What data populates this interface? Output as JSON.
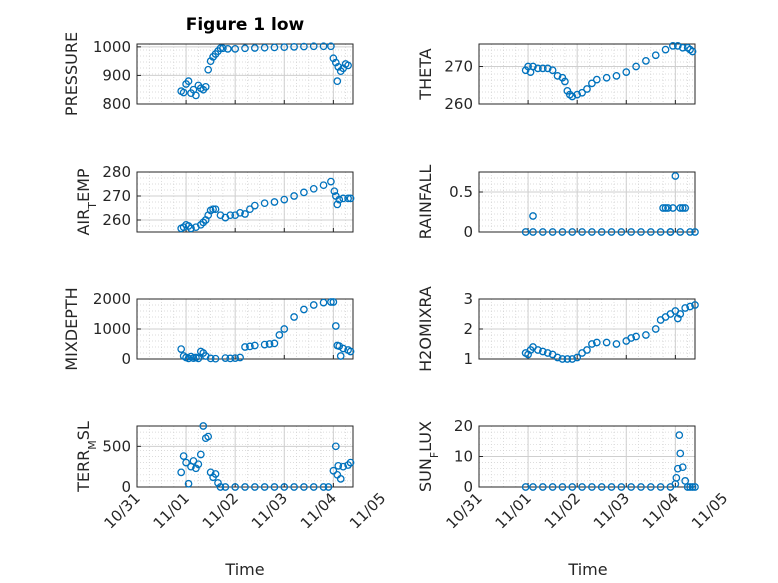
{
  "figure": {
    "title": "Figure 1 low",
    "xlabel": "Time",
    "marker_color": "#0072BD"
  },
  "chart_data": [
    {
      "type": "scatter",
      "ylabel": "PRESSURE",
      "ylim": [
        800,
        1010
      ],
      "yticks": [
        {
          "v": 800,
          "label": "800"
        },
        {
          "v": 900,
          "label": "900"
        },
        {
          "v": 1000,
          "label": "1000"
        }
      ],
      "points": [
        [
          0.9,
          845
        ],
        [
          0.95,
          840
        ],
        [
          1.0,
          870
        ],
        [
          1.05,
          880
        ],
        [
          1.1,
          838
        ],
        [
          1.15,
          850
        ],
        [
          1.2,
          830
        ],
        [
          1.25,
          865
        ],
        [
          1.3,
          855
        ],
        [
          1.35,
          850
        ],
        [
          1.4,
          860
        ],
        [
          1.45,
          920
        ],
        [
          1.5,
          950
        ],
        [
          1.55,
          965
        ],
        [
          1.6,
          975
        ],
        [
          1.65,
          985
        ],
        [
          1.7,
          995
        ],
        [
          1.75,
          995
        ],
        [
          1.85,
          993
        ],
        [
          2.0,
          993
        ],
        [
          2.2,
          995
        ],
        [
          2.4,
          996
        ],
        [
          2.6,
          997
        ],
        [
          2.8,
          998
        ],
        [
          3.0,
          999
        ],
        [
          3.2,
          1000
        ],
        [
          3.4,
          1001
        ],
        [
          3.6,
          1002
        ],
        [
          3.8,
          1002
        ],
        [
          3.95,
          1002
        ],
        [
          4.0,
          960
        ],
        [
          4.05,
          945
        ],
        [
          4.08,
          880
        ],
        [
          4.1,
          930
        ],
        [
          4.15,
          915
        ],
        [
          4.2,
          925
        ],
        [
          4.25,
          940
        ],
        [
          4.3,
          935
        ]
      ]
    },
    {
      "type": "scatter",
      "ylabel": "THETA",
      "ylim": [
        260,
        276
      ],
      "yticks": [
        {
          "v": 260,
          "label": "260"
        },
        {
          "v": 270,
          "label": "270"
        }
      ],
      "points": [
        [
          0.95,
          269
        ],
        [
          1.0,
          270
        ],
        [
          1.05,
          268.5
        ],
        [
          1.1,
          270
        ],
        [
          1.2,
          269.5
        ],
        [
          1.3,
          269.5
        ],
        [
          1.4,
          269.5
        ],
        [
          1.5,
          269
        ],
        [
          1.6,
          267.5
        ],
        [
          1.7,
          267
        ],
        [
          1.75,
          266
        ],
        [
          1.8,
          263.5
        ],
        [
          1.85,
          262.5
        ],
        [
          1.9,
          262
        ],
        [
          2.0,
          262.5
        ],
        [
          2.1,
          263
        ],
        [
          2.2,
          264
        ],
        [
          2.3,
          265.5
        ],
        [
          2.4,
          266.5
        ],
        [
          2.6,
          267
        ],
        [
          2.8,
          267.5
        ],
        [
          3.0,
          268.5
        ],
        [
          3.2,
          270
        ],
        [
          3.4,
          271.5
        ],
        [
          3.6,
          273
        ],
        [
          3.8,
          274.5
        ],
        [
          3.95,
          275.5
        ],
        [
          4.05,
          275.5
        ],
        [
          4.15,
          275
        ],
        [
          4.25,
          275
        ],
        [
          4.3,
          274.5
        ],
        [
          4.35,
          274
        ]
      ]
    },
    {
      "type": "scatter",
      "ylabel": "AIR",
      "ylabel_sub": "T",
      "ylabel_rest": "EMP",
      "ylim": [
        255,
        280
      ],
      "yticks": [
        {
          "v": 260,
          "label": "260"
        },
        {
          "v": 270,
          "label": "270"
        },
        {
          "v": 280,
          "label": "280"
        }
      ],
      "points": [
        [
          0.9,
          256.5
        ],
        [
          0.95,
          257
        ],
        [
          1.0,
          258
        ],
        [
          1.05,
          257.5
        ],
        [
          1.1,
          256.5
        ],
        [
          1.2,
          257
        ],
        [
          1.3,
          258
        ],
        [
          1.35,
          259
        ],
        [
          1.4,
          260
        ],
        [
          1.45,
          262
        ],
        [
          1.5,
          264
        ],
        [
          1.55,
          264.5
        ],
        [
          1.6,
          264.5
        ],
        [
          1.7,
          262
        ],
        [
          1.8,
          261
        ],
        [
          1.9,
          262
        ],
        [
          2.0,
          262
        ],
        [
          2.1,
          263
        ],
        [
          2.2,
          262.5
        ],
        [
          2.3,
          264.5
        ],
        [
          2.4,
          266
        ],
        [
          2.6,
          267
        ],
        [
          2.8,
          267.5
        ],
        [
          3.0,
          268.5
        ],
        [
          3.2,
          270
        ],
        [
          3.4,
          271.5
        ],
        [
          3.6,
          273
        ],
        [
          3.8,
          274.5
        ],
        [
          3.95,
          276
        ],
        [
          4.02,
          272
        ],
        [
          4.05,
          270
        ],
        [
          4.08,
          266.5
        ],
        [
          4.12,
          268.5
        ],
        [
          4.2,
          269
        ],
        [
          4.3,
          269
        ],
        [
          4.35,
          269
        ]
      ]
    },
    {
      "type": "scatter",
      "ylabel": "RAINFALL",
      "ylim": [
        0,
        0.75
      ],
      "yticks": [
        {
          "v": 0,
          "label": "0"
        },
        {
          "v": 0.5,
          "label": "0.5"
        }
      ],
      "points": [
        [
          0.95,
          0
        ],
        [
          1.1,
          0
        ],
        [
          1.3,
          0
        ],
        [
          1.5,
          0
        ],
        [
          1.7,
          0
        ],
        [
          1.9,
          0
        ],
        [
          2.1,
          0
        ],
        [
          2.3,
          0
        ],
        [
          2.5,
          0
        ],
        [
          2.7,
          0
        ],
        [
          2.9,
          0
        ],
        [
          3.1,
          0
        ],
        [
          3.3,
          0
        ],
        [
          3.5,
          0
        ],
        [
          3.7,
          0
        ],
        [
          3.9,
          0
        ],
        [
          4.1,
          0
        ],
        [
          4.3,
          0
        ],
        [
          4.4,
          0
        ],
        [
          1.1,
          0.2
        ],
        [
          3.75,
          0.3
        ],
        [
          3.8,
          0.3
        ],
        [
          3.85,
          0.3
        ],
        [
          3.95,
          0.3
        ],
        [
          4.1,
          0.3
        ],
        [
          4.15,
          0.3
        ],
        [
          4.2,
          0.3
        ],
        [
          3.9,
          0
        ],
        [
          4.0,
          0.7
        ]
      ]
    },
    {
      "type": "scatter",
      "ylabel": "MIXDEPTH",
      "ylim": [
        0,
        2000
      ],
      "yticks": [
        {
          "v": 0,
          "label": "0"
        },
        {
          "v": 1000,
          "label": "1000"
        },
        {
          "v": 2000,
          "label": "2000"
        }
      ],
      "points": [
        [
          0.9,
          330
        ],
        [
          0.95,
          100
        ],
        [
          1.0,
          50
        ],
        [
          1.05,
          20
        ],
        [
          1.1,
          80
        ],
        [
          1.15,
          30
        ],
        [
          1.2,
          50
        ],
        [
          1.25,
          20
        ],
        [
          1.3,
          250
        ],
        [
          1.35,
          200
        ],
        [
          1.4,
          100
        ],
        [
          1.5,
          20
        ],
        [
          1.6,
          10
        ],
        [
          1.8,
          30
        ],
        [
          1.9,
          20
        ],
        [
          2.0,
          30
        ],
        [
          2.1,
          50
        ],
        [
          2.2,
          400
        ],
        [
          2.3,
          420
        ],
        [
          2.4,
          450
        ],
        [
          2.6,
          480
        ],
        [
          2.7,
          500
        ],
        [
          2.8,
          520
        ],
        [
          2.9,
          800
        ],
        [
          3.0,
          1000
        ],
        [
          3.2,
          1400
        ],
        [
          3.4,
          1650
        ],
        [
          3.6,
          1800
        ],
        [
          3.8,
          1880
        ],
        [
          3.95,
          1900
        ],
        [
          4.0,
          1900
        ],
        [
          4.05,
          1100
        ],
        [
          4.08,
          450
        ],
        [
          4.12,
          430
        ],
        [
          4.15,
          100
        ],
        [
          4.2,
          350
        ],
        [
          4.3,
          300
        ],
        [
          4.35,
          250
        ]
      ]
    },
    {
      "type": "scatter",
      "ylabel": "H2OMIXRA",
      "ylim": [
        1,
        3
      ],
      "yticks": [
        {
          "v": 1,
          "label": "1"
        },
        {
          "v": 2,
          "label": "2"
        },
        {
          "v": 3,
          "label": "3"
        }
      ],
      "points": [
        [
          0.95,
          1.2
        ],
        [
          1.0,
          1.15
        ],
        [
          1.05,
          1.3
        ],
        [
          1.1,
          1.4
        ],
        [
          1.2,
          1.3
        ],
        [
          1.3,
          1.25
        ],
        [
          1.4,
          1.2
        ],
        [
          1.5,
          1.15
        ],
        [
          1.6,
          1.05
        ],
        [
          1.7,
          1.0
        ],
        [
          1.8,
          1.0
        ],
        [
          1.9,
          1.0
        ],
        [
          2.0,
          1.05
        ],
        [
          2.1,
          1.2
        ],
        [
          2.2,
          1.3
        ],
        [
          2.3,
          1.5
        ],
        [
          2.4,
          1.55
        ],
        [
          2.6,
          1.55
        ],
        [
          2.8,
          1.5
        ],
        [
          3.0,
          1.6
        ],
        [
          3.1,
          1.7
        ],
        [
          3.2,
          1.75
        ],
        [
          3.4,
          1.8
        ],
        [
          3.6,
          2.0
        ],
        [
          3.7,
          2.3
        ],
        [
          3.8,
          2.4
        ],
        [
          3.9,
          2.5
        ],
        [
          4.0,
          2.6
        ],
        [
          4.05,
          2.35
        ],
        [
          4.1,
          2.5
        ],
        [
          4.2,
          2.7
        ],
        [
          4.3,
          2.75
        ],
        [
          4.4,
          2.8
        ]
      ]
    },
    {
      "type": "scatter",
      "ylabel": "TERR",
      "ylabel_sub": "M",
      "ylabel_rest": "SL",
      "ylim": [
        0,
        750
      ],
      "yticks": [
        {
          "v": 0,
          "label": "0"
        },
        {
          "v": 500,
          "label": "500"
        }
      ],
      "points": [
        [
          0.9,
          180
        ],
        [
          0.95,
          380
        ],
        [
          1.0,
          300
        ],
        [
          1.05,
          40
        ],
        [
          1.1,
          250
        ],
        [
          1.15,
          320
        ],
        [
          1.2,
          230
        ],
        [
          1.25,
          280
        ],
        [
          1.3,
          400
        ],
        [
          1.35,
          750
        ],
        [
          1.4,
          600
        ],
        [
          1.45,
          620
        ],
        [
          1.5,
          180
        ],
        [
          1.55,
          120
        ],
        [
          1.6,
          160
        ],
        [
          1.65,
          50
        ],
        [
          1.7,
          0
        ],
        [
          1.8,
          0
        ],
        [
          2.0,
          0
        ],
        [
          2.2,
          0
        ],
        [
          2.4,
          0
        ],
        [
          2.6,
          0
        ],
        [
          2.8,
          0
        ],
        [
          3.0,
          0
        ],
        [
          3.2,
          0
        ],
        [
          3.4,
          0
        ],
        [
          3.6,
          0
        ],
        [
          3.8,
          0
        ],
        [
          3.9,
          0
        ],
        [
          4.0,
          200
        ],
        [
          4.05,
          500
        ],
        [
          4.08,
          150
        ],
        [
          4.1,
          260
        ],
        [
          4.15,
          100
        ],
        [
          4.2,
          250
        ],
        [
          4.3,
          270
        ],
        [
          4.35,
          300
        ]
      ]
    },
    {
      "type": "scatter",
      "ylabel": "SUN",
      "ylabel_sub": "F",
      "ylabel_rest": "LUX",
      "ylim": [
        0,
        20
      ],
      "yticks": [
        {
          "v": 0,
          "label": "0"
        },
        {
          "v": 10,
          "label": "10"
        },
        {
          "v": 20,
          "label": "20"
        }
      ],
      "points": [
        [
          0.95,
          0
        ],
        [
          1.1,
          0
        ],
        [
          1.3,
          0
        ],
        [
          1.5,
          0
        ],
        [
          1.7,
          0
        ],
        [
          1.9,
          0
        ],
        [
          2.1,
          0
        ],
        [
          2.3,
          0
        ],
        [
          2.5,
          0
        ],
        [
          2.7,
          0
        ],
        [
          2.9,
          0
        ],
        [
          3.1,
          0
        ],
        [
          3.3,
          0
        ],
        [
          3.5,
          0
        ],
        [
          3.7,
          0
        ],
        [
          3.9,
          0
        ],
        [
          4.0,
          1
        ],
        [
          4.02,
          3
        ],
        [
          4.05,
          6
        ],
        [
          4.08,
          17
        ],
        [
          4.1,
          11
        ],
        [
          4.15,
          6.5
        ],
        [
          4.2,
          2
        ],
        [
          4.25,
          0
        ],
        [
          4.3,
          0
        ],
        [
          4.35,
          0
        ],
        [
          4.4,
          0
        ]
      ]
    }
  ],
  "xaxis": {
    "xlim": [
      0,
      4.4
    ],
    "ticks": [
      {
        "v": 0,
        "label": "10/31"
      },
      {
        "v": 1,
        "label": "11/01"
      },
      {
        "v": 2,
        "label": "11/02"
      },
      {
        "v": 3,
        "label": "11/03"
      },
      {
        "v": 4,
        "label": "11/04"
      },
      {
        "v": 5,
        "label": "11/05"
      }
    ]
  }
}
